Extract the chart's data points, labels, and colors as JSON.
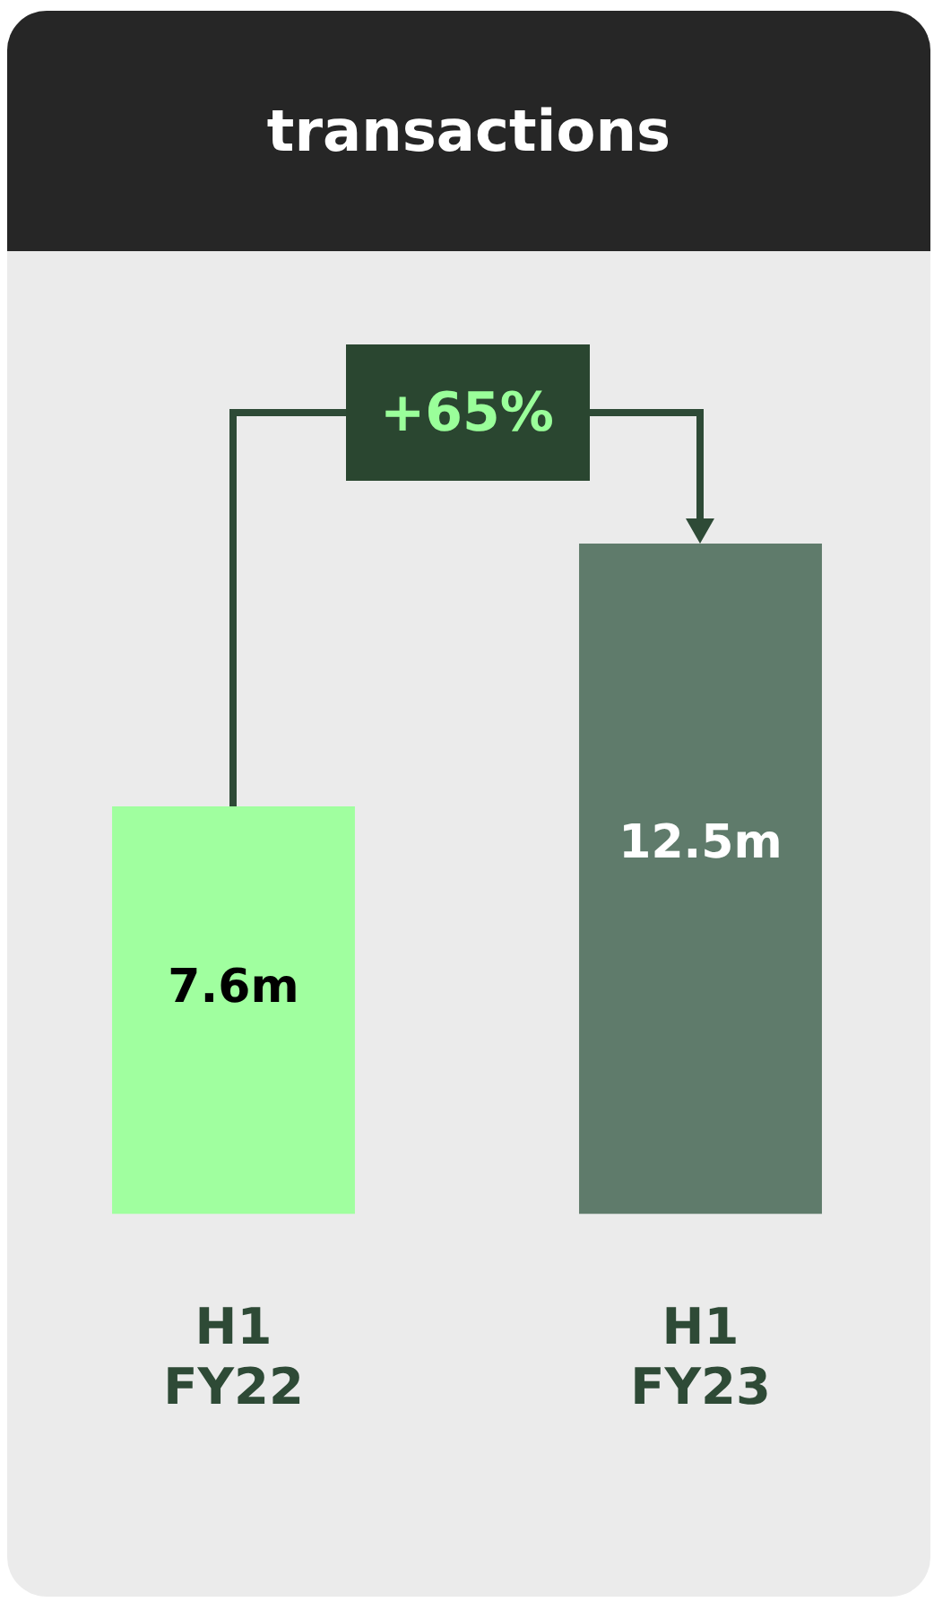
{
  "chart_data": {
    "type": "bar",
    "title": "transactions",
    "categories": [
      "H1 FY22",
      "H1 FY23"
    ],
    "values": [
      7.6,
      12.5
    ],
    "colors": [
      "#a0ff9f",
      "#5f7b6b"
    ],
    "value_labels": [
      "7.6m",
      "12.5m"
    ],
    "annotations": [
      "+65%"
    ],
    "legend": false,
    "grid": false
  }
}
